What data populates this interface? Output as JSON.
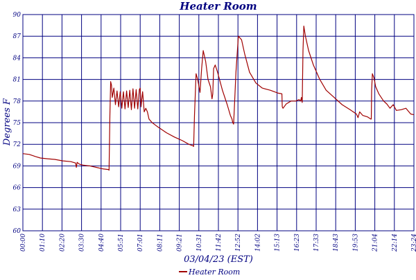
{
  "chart_data": {
    "type": "line",
    "title": "Heater Room",
    "xlabel": "03/04/23 (EST)",
    "ylabel": "Degrees F",
    "ylim": [
      60,
      90
    ],
    "y_ticks": [
      60,
      63,
      66,
      69,
      72,
      75,
      78,
      81,
      84,
      87,
      90
    ],
    "y_tick_labels": [
      "60",
      "63",
      "66",
      "69",
      "72",
      "75",
      "78",
      "81",
      "84",
      "87",
      "90"
    ],
    "x_range_hours": [
      0,
      24.5
    ],
    "x_tick_labels": [
      "00:00",
      "01:10",
      "02:20",
      "03:30",
      "04:40",
      "05:51",
      "07:01",
      "08:11",
      "09:21",
      "10:31",
      "11:42",
      "12:52",
      "14:02",
      "15:13",
      "16:23",
      "17:33",
      "18:43",
      "19:53",
      "21:04",
      "22:14",
      "23:24"
    ],
    "grid": true,
    "legend_position": "bottom",
    "colors": {
      "series": "#a00000",
      "grid": "#000080",
      "text": "#000080"
    },
    "series": [
      {
        "name": "Heater Room",
        "color": "#a00000",
        "x": [
          0.0,
          0.4,
          0.8,
          1.1,
          1.5,
          2.0,
          2.5,
          3.0,
          3.3,
          3.35,
          3.4,
          3.5,
          3.6,
          3.8,
          4.2,
          4.6,
          5.0,
          5.35,
          5.4,
          5.45,
          5.5,
          5.55,
          5.6,
          5.7,
          5.8,
          5.9,
          6.0,
          6.1,
          6.2,
          6.3,
          6.4,
          6.5,
          6.6,
          6.7,
          6.8,
          6.9,
          7.0,
          7.1,
          7.2,
          7.3,
          7.35,
          7.4,
          7.5,
          7.6,
          7.7,
          7.8,
          7.9,
          8.1,
          8.4,
          9.0,
          9.5,
          10.0,
          10.4,
          10.65,
          10.7,
          10.75,
          10.85,
          10.95,
          11.1,
          11.2,
          11.3,
          11.45,
          11.6,
          11.75,
          11.85,
          11.9,
          11.95,
          12.05,
          12.2,
          12.5,
          12.8,
          13.0,
          13.1,
          13.15,
          13.2,
          13.25,
          13.35,
          13.5,
          13.7,
          13.9,
          14.2,
          14.6,
          15.0,
          15.5,
          16.0,
          16.23,
          16.25,
          16.3,
          16.5,
          16.8,
          17.1,
          17.3,
          17.4,
          17.45,
          17.5,
          17.55,
          17.6,
          17.7,
          17.9,
          18.2,
          18.6,
          19.0,
          19.5,
          20.0,
          20.5,
          20.9,
          21.0,
          21.1,
          21.3,
          21.6,
          21.8,
          21.83,
          21.85,
          21.9,
          22.0,
          22.1,
          22.3,
          22.6,
          22.8,
          23.0,
          23.2,
          23.4,
          23.7,
          24.0,
          24.3,
          24.5
        ],
        "y": [
          70.7,
          70.6,
          70.3,
          70.1,
          70.0,
          69.9,
          69.7,
          69.6,
          69.4,
          68.8,
          69.5,
          69.3,
          69.2,
          69.1,
          69.0,
          68.8,
          68.6,
          68.5,
          68.4,
          76.0,
          80.7,
          80.2,
          78.5,
          79.8,
          77.5,
          79.4,
          77.2,
          79.3,
          77.0,
          79.3,
          76.9,
          79.4,
          77.1,
          79.5,
          76.8,
          79.7,
          77.0,
          79.6,
          76.9,
          79.6,
          79.8,
          77.2,
          79.3,
          76.5,
          77.0,
          76.5,
          75.5,
          75.0,
          74.5,
          73.6,
          73.0,
          72.5,
          72.0,
          71.8,
          71.7,
          76.0,
          81.8,
          81.0,
          79.2,
          82.5,
          85.0,
          83.5,
          81.0,
          80.0,
          78.3,
          79.0,
          82.5,
          83.0,
          82.0,
          79.5,
          77.5,
          76.0,
          75.5,
          75.0,
          74.8,
          77.0,
          82.0,
          87.0,
          86.5,
          84.5,
          82.0,
          80.5,
          79.8,
          79.5,
          79.1,
          79.0,
          77.2,
          77.0,
          77.6,
          78.0,
          78.0,
          78.2,
          78.0,
          78.5,
          77.8,
          85.0,
          88.4,
          87.0,
          85.0,
          83.0,
          81.0,
          79.5,
          78.5,
          77.5,
          76.8,
          76.2,
          75.7,
          76.5,
          76.0,
          75.8,
          75.5,
          75.5,
          79.5,
          81.8,
          81.2,
          80.0,
          79.0,
          78.0,
          77.6,
          77.0,
          77.5,
          76.7,
          76.8,
          77.0,
          76.2,
          76.1
        ]
      }
    ]
  }
}
